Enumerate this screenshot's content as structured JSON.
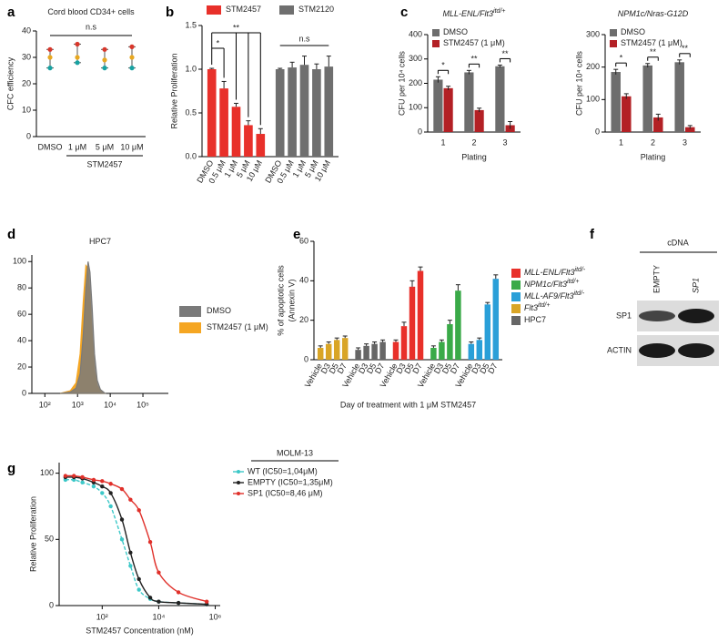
{
  "chart_data": [
    {
      "type": "dotplot",
      "label": "a",
      "title": "Cord blood CD34+ cells",
      "ylabel": "CFC efficiency",
      "categories": [
        "DMSO",
        "1 μM",
        "5 μM",
        "10 μM"
      ],
      "group_label": "STM2457",
      "annotation": "n.s",
      "values": [
        [
          26,
          30,
          33
        ],
        [
          28,
          30,
          35
        ],
        [
          26,
          29,
          33
        ],
        [
          26,
          30,
          34
        ]
      ],
      "point_colors": [
        "#17a2a2",
        "#e8a820",
        "#d9372b"
      ],
      "ylim": [
        0,
        40
      ],
      "yticks": [
        0,
        10,
        20,
        30,
        40
      ]
    },
    {
      "type": "bar",
      "label": "b",
      "ylabel": "Relative Proliferation",
      "legend": "top",
      "categories": [
        "DMSO",
        "0.5 μM",
        "1 μM",
        "5 μM",
        "10 μM"
      ],
      "series": [
        {
          "name": "STM2457",
          "color": "#e8302a",
          "values": [
            1.0,
            0.78,
            0.57,
            0.36,
            0.26
          ],
          "errors": [
            0.01,
            0.08,
            0.04,
            0.05,
            0.06
          ]
        },
        {
          "name": "STM2120",
          "color": "#6f6f6f",
          "values": [
            1.0,
            1.02,
            1.05,
            1.0,
            1.03
          ],
          "errors": [
            0.01,
            0.06,
            0.1,
            0.06,
            0.12
          ]
        }
      ],
      "significance": [
        "*",
        "**",
        "n.s"
      ],
      "ylim": [
        0,
        1.5
      ],
      "yticks": [
        {
          "value": 0,
          "label": "0.0"
        },
        0.5,
        {
          "value": 1,
          "label": "1.0"
        },
        1.5
      ]
    },
    {
      "type": "grouped",
      "label": "c",
      "title": "MLL-ENL/Flt3",
      "title_superscript": "itd/+",
      "xlabel": "Plating",
      "ylabel": "CFU per 10⁴ cells",
      "legend": "top-left",
      "categories": [
        1,
        2,
        3
      ],
      "series": [
        {
          "name": "DMSO",
          "color": "#6d6d6d",
          "values": [
            215,
            245,
            270
          ],
          "errors": [
            12,
            8,
            5
          ]
        },
        {
          "name": "STM2457 (1 μM)",
          "color": "#b32025",
          "values": [
            180,
            90,
            28
          ],
          "errors": [
            8,
            8,
            15
          ]
        }
      ],
      "significance": [
        "*",
        "**",
        "**"
      ],
      "ylim": [
        0,
        400
      ],
      "yticks": [
        0,
        100,
        200,
        300,
        400
      ]
    },
    {
      "type": "grouped",
      "title": "NPM1c/Nras-G12D",
      "xlabel": "Plating",
      "ylabel": "CFU per 10⁴ cells",
      "legend": "top-left",
      "categories": [
        1,
        2,
        3
      ],
      "series": [
        {
          "name": "DMSO",
          "color": "#6d6d6d",
          "values": [
            185,
            205,
            215
          ],
          "errors": [
            8,
            6,
            7
          ]
        },
        {
          "name": "STM2457 (1 μM)",
          "color": "#b32025",
          "values": [
            110,
            45,
            15
          ],
          "errors": [
            8,
            10,
            5
          ]
        }
      ],
      "significance": [
        "*",
        "**",
        "**"
      ],
      "ylim": [
        0,
        300
      ],
      "yticks": [
        0,
        100,
        200,
        300
      ]
    },
    {
      "type": "area",
      "label": "d",
      "title": "HPC7",
      "log_x": true,
      "x": [
        300,
        600,
        900,
        1200,
        1500,
        1800,
        2100,
        2400,
        2800,
        3300,
        4000,
        5000,
        7000
      ],
      "series": [
        {
          "name": "DMSO",
          "color": "#7a7a7a",
          "values": [
            0,
            1,
            4,
            15,
            45,
            80,
            100,
            92,
            65,
            30,
            10,
            3,
            0
          ]
        },
        {
          "name": "STM2457 (1 μM)",
          "color": "#f5a623",
          "values": [
            0,
            2,
            8,
            30,
            70,
            97,
            95,
            75,
            45,
            18,
            6,
            2,
            0
          ]
        }
      ],
      "xlim": [
        40,
        600000
      ],
      "xticks": [
        {
          "value": 100,
          "label": "10²"
        },
        {
          "value": 1000,
          "label": "10³"
        },
        {
          "value": 10000,
          "label": "10⁴"
        },
        {
          "value": 100000,
          "label": "10⁵"
        }
      ],
      "ylim": [
        0,
        105
      ],
      "yticks": [
        0,
        20,
        40,
        60,
        80,
        100
      ]
    },
    {
      "type": "bar",
      "label": "e",
      "ylabel_lines": [
        "% of apoptotic cells",
        "(Annexin V)"
      ],
      "xlabel": "Day of treatment with 1 μM STM2457",
      "legend": "right",
      "categories": [
        "Vehicle",
        "D3",
        "D5",
        "D7"
      ],
      "series": [
        {
          "name": "MLL-ENL/Flt3",
          "name_superscript": "itd/-",
          "color": "#e8302a",
          "values": [
            9,
            17,
            37,
            45
          ],
          "errors": [
            1,
            2,
            3,
            2
          ]
        },
        {
          "name": "NPM1c/Flt3",
          "name_superscript": "itd/+",
          "color": "#3aaa48",
          "values": [
            6,
            9,
            18,
            35
          ],
          "errors": [
            1,
            1,
            2,
            3
          ]
        },
        {
          "name": "MLL-AF9/Flt3",
          "name_superscript": "itd/-",
          "color": "#2a9fd8",
          "values": [
            8,
            10,
            28,
            41
          ],
          "errors": [
            1,
            1,
            1,
            2
          ]
        },
        {
          "name": "Flt3",
          "name_superscript": "itd/+",
          "color": "#d9a526",
          "values": [
            6,
            8,
            10,
            11
          ],
          "errors": [
            1,
            1,
            1,
            1
          ]
        },
        {
          "name": "HPC7",
          "color": "#666666",
          "values": [
            5,
            7,
            8,
            9
          ],
          "errors": [
            1,
            1,
            1,
            1
          ]
        }
      ],
      "ylim": [
        0,
        60
      ],
      "yticks": [
        0,
        20,
        40,
        60
      ]
    },
    {
      "type": "blot",
      "label": "f",
      "header": "cDNA",
      "lanes": [
        "EMPTY",
        "SP1"
      ],
      "rows": [
        "SP1",
        "ACTIN"
      ]
    },
    {
      "type": "line",
      "label": "g",
      "log_x": true,
      "xlabel": "STM2457 Concentration (nM)",
      "ylabel": "Relative Proliferation",
      "legend_title": "MOLM-13",
      "x": [
        5,
        10,
        20,
        50,
        100,
        200,
        500,
        1000,
        2000,
        5000,
        10000,
        50000,
        500000
      ],
      "series": [
        {
          "name": "WT (IC50=1,04μM)",
          "color": "#3cc8c8",
          "dash": true,
          "values": [
            95,
            95,
            93,
            90,
            85,
            75,
            50,
            30,
            12,
            5,
            3,
            2,
            1
          ]
        },
        {
          "name": "EMPTY (IC50=1,35μM)",
          "color": "#222222",
          "values": [
            97,
            97,
            96,
            93,
            90,
            85,
            65,
            40,
            20,
            6,
            3,
            2,
            1
          ]
        },
        {
          "name": "SP1 (IC50=8,46 μM)",
          "color": "#e0302a",
          "values": [
            98,
            98,
            97,
            95,
            94,
            92,
            88,
            80,
            72,
            48,
            25,
            10,
            3
          ]
        }
      ],
      "xlim": [
        3,
        1500000
      ],
      "xticks": [
        {
          "value": 100,
          "label": "10²"
        },
        {
          "value": 10000,
          "label": "10⁴"
        },
        {
          "value": 1000000,
          "label": "10⁶"
        }
      ],
      "ylim": [
        0,
        108
      ],
      "yticks": [
        0,
        50,
        100
      ]
    }
  ]
}
